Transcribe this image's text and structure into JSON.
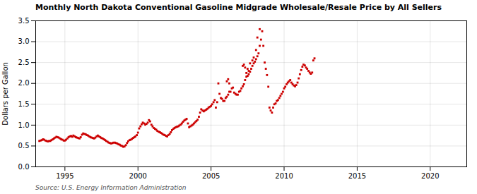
{
  "chart_data": {
    "type": "scatter",
    "title": "Monthly North Dakota Conventional Gasoline Midgrade Wholesale/Resale Price by All Sellers",
    "ylabel": "Dollars per Gallon",
    "annotations": [
      "Source: U.S. Energy Information Administration"
    ],
    "color": "#cc0000",
    "marker": "square",
    "grid": true,
    "xlim": [
      1993.0,
      2022.5
    ],
    "ylim": [
      0.0,
      3.5
    ],
    "xticks": [
      1995,
      2000,
      2005,
      2010,
      2015,
      2020
    ],
    "yticks": [
      {
        "value": 0.0,
        "label": "0.0"
      },
      0.5,
      {
        "value": 1.0,
        "label": "1.0"
      },
      1.5,
      {
        "value": 2.0,
        "label": "2.0"
      },
      2.5,
      {
        "value": 3.0,
        "label": "3.0"
      },
      3.5
    ],
    "x": [
      1993.25,
      1993.33,
      1993.42,
      1993.5,
      1993.58,
      1993.67,
      1993.75,
      1993.83,
      1993.92,
      1994.0,
      1994.08,
      1994.17,
      1994.25,
      1994.33,
      1994.42,
      1994.5,
      1994.58,
      1994.67,
      1994.75,
      1994.83,
      1994.92,
      1995.0,
      1995.08,
      1995.17,
      1995.25,
      1995.33,
      1995.42,
      1995.5,
      1995.58,
      1995.67,
      1995.75,
      1995.83,
      1995.92,
      1996.0,
      1996.08,
      1996.17,
      1996.25,
      1996.33,
      1996.42,
      1996.5,
      1996.58,
      1996.67,
      1996.75,
      1996.83,
      1996.92,
      1997.0,
      1997.08,
      1997.17,
      1997.25,
      1997.33,
      1997.42,
      1997.5,
      1997.58,
      1997.67,
      1997.75,
      1997.83,
      1997.92,
      1998.0,
      1998.08,
      1998.17,
      1998.25,
      1998.33,
      1998.42,
      1998.5,
      1998.58,
      1998.67,
      1998.75,
      1998.83,
      1998.92,
      1999.0,
      1999.08,
      1999.17,
      1999.25,
      1999.33,
      1999.42,
      1999.5,
      1999.58,
      1999.67,
      1999.75,
      1999.83,
      1999.92,
      2000.0,
      2000.08,
      2000.17,
      2000.25,
      2000.33,
      2000.42,
      2000.5,
      2000.58,
      2000.67,
      2000.75,
      2000.83,
      2000.92,
      2001.0,
      2001.08,
      2001.17,
      2001.25,
      2001.33,
      2001.42,
      2001.5,
      2001.58,
      2001.67,
      2001.75,
      2001.83,
      2001.92,
      2002.0,
      2002.08,
      2002.17,
      2002.25,
      2002.33,
      2002.42,
      2002.5,
      2002.58,
      2002.67,
      2002.75,
      2002.83,
      2002.92,
      2003.0,
      2003.08,
      2003.17,
      2003.25,
      2003.33,
      2003.42,
      2003.5,
      2003.58,
      2003.67,
      2003.75,
      2003.83,
      2003.92,
      2004.0,
      2004.08,
      2004.17,
      2004.25,
      2004.33,
      2004.42,
      2004.5,
      2004.58,
      2004.67,
      2004.75,
      2004.83,
      2004.92,
      2005.0,
      2005.08,
      2005.17,
      2005.25,
      2005.33,
      2005.42,
      2005.5,
      2005.58,
      2005.67,
      2005.75,
      2005.83,
      2005.92,
      2006.0,
      2006.08,
      2006.17,
      2006.25,
      2006.33,
      2006.42,
      2006.5,
      2006.58,
      2006.67,
      2006.75,
      2006.83,
      2006.92,
      2007.0,
      2007.08,
      2007.17,
      2007.25,
      2007.33,
      2007.42,
      2007.5,
      2007.58,
      2007.67,
      2007.75,
      2007.83,
      2007.92,
      2008.0,
      2008.08,
      2008.17,
      2008.25,
      2008.33,
      2008.42,
      2008.5,
      2008.58,
      2008.67,
      2008.75,
      2008.83,
      2008.92,
      2007.17,
      2007.25,
      2007.33,
      2007.42,
      2007.5,
      2007.58,
      2007.67,
      2006.25,
      2006.08,
      2006.17,
      2007.83,
      2007.92,
      2008.08,
      2008.17,
      2008.33,
      2009.0,
      2009.08,
      2009.17,
      2009.25,
      2009.33,
      2009.42,
      2009.5,
      2009.58,
      2009.67,
      2009.75,
      2009.83,
      2009.92,
      2010.0,
      2010.08,
      2010.17,
      2010.25,
      2010.33,
      2010.42,
      2010.5,
      2010.58,
      2010.67,
      2010.75,
      2010.83,
      2010.92,
      2011.0,
      2011.08,
      2011.17,
      2011.25,
      2011.33,
      2011.42,
      2011.5,
      2011.58,
      2011.67,
      2011.75,
      2011.83,
      2011.92,
      2012.0,
      2012.08
    ],
    "values": [
      0.62,
      0.63,
      0.64,
      0.66,
      0.65,
      0.63,
      0.62,
      0.61,
      0.62,
      0.62,
      0.64,
      0.66,
      0.68,
      0.7,
      0.72,
      0.71,
      0.7,
      0.68,
      0.66,
      0.65,
      0.63,
      0.63,
      0.65,
      0.68,
      0.71,
      0.73,
      0.74,
      0.72,
      0.75,
      0.73,
      0.71,
      0.7,
      0.69,
      0.68,
      0.71,
      0.77,
      0.8,
      0.79,
      0.78,
      0.76,
      0.75,
      0.73,
      0.71,
      0.7,
      0.69,
      0.68,
      0.7,
      0.73,
      0.75,
      0.73,
      0.71,
      0.69,
      0.68,
      0.66,
      0.64,
      0.62,
      0.6,
      0.58,
      0.57,
      0.56,
      0.57,
      0.58,
      0.58,
      0.57,
      0.56,
      0.54,
      0.53,
      0.51,
      0.5,
      0.48,
      0.49,
      0.52,
      0.57,
      0.61,
      0.64,
      0.65,
      0.67,
      0.69,
      0.71,
      0.73,
      0.76,
      0.82,
      0.92,
      0.97,
      1.02,
      1.06,
      1.04,
      1.01,
      1.03,
      1.06,
      1.12,
      1.09,
      1.01,
      0.97,
      0.93,
      0.91,
      0.89,
      0.86,
      0.84,
      0.83,
      0.81,
      0.79,
      0.77,
      0.76,
      0.74,
      0.73,
      0.76,
      0.79,
      0.83,
      0.88,
      0.91,
      0.93,
      0.95,
      0.96,
      0.97,
      0.99,
      1.01,
      1.04,
      1.08,
      1.11,
      1.13,
      1.15,
      1.04,
      0.95,
      0.97,
      0.99,
      1.01,
      1.04,
      1.07,
      1.1,
      1.13,
      1.2,
      1.3,
      1.38,
      1.35,
      1.33,
      1.35,
      1.37,
      1.39,
      1.42,
      1.44,
      1.46,
      1.5,
      1.55,
      1.6,
      1.42,
      1.55,
      2.0,
      1.75,
      1.65,
      1.63,
      1.58,
      1.58,
      1.65,
      1.68,
      1.73,
      1.8,
      1.8,
      1.88,
      1.9,
      1.78,
      1.75,
      1.73,
      1.73,
      1.8,
      1.82,
      1.88,
      1.93,
      1.98,
      2.08,
      2.16,
      2.18,
      2.22,
      2.28,
      2.35,
      2.42,
      2.48,
      2.52,
      2.58,
      2.65,
      2.72,
      2.9,
      3.05,
      3.25,
      2.9,
      2.5,
      2.35,
      2.2,
      1.92,
      2.42,
      2.45,
      2.38,
      2.25,
      2.35,
      2.3,
      2.48,
      2.0,
      2.05,
      2.1,
      2.55,
      2.62,
      2.8,
      3.1,
      3.3,
      1.42,
      1.35,
      1.3,
      1.42,
      1.5,
      1.52,
      1.58,
      1.6,
      1.65,
      1.7,
      1.75,
      1.8,
      1.88,
      1.92,
      1.98,
      2.02,
      2.05,
      2.08,
      2.02,
      1.98,
      1.95,
      1.93,
      1.96,
      2.02,
      2.12,
      2.22,
      2.32,
      2.4,
      2.45,
      2.43,
      2.38,
      2.35,
      2.3,
      2.26,
      2.23,
      2.26,
      2.55,
      2.6
    ]
  }
}
